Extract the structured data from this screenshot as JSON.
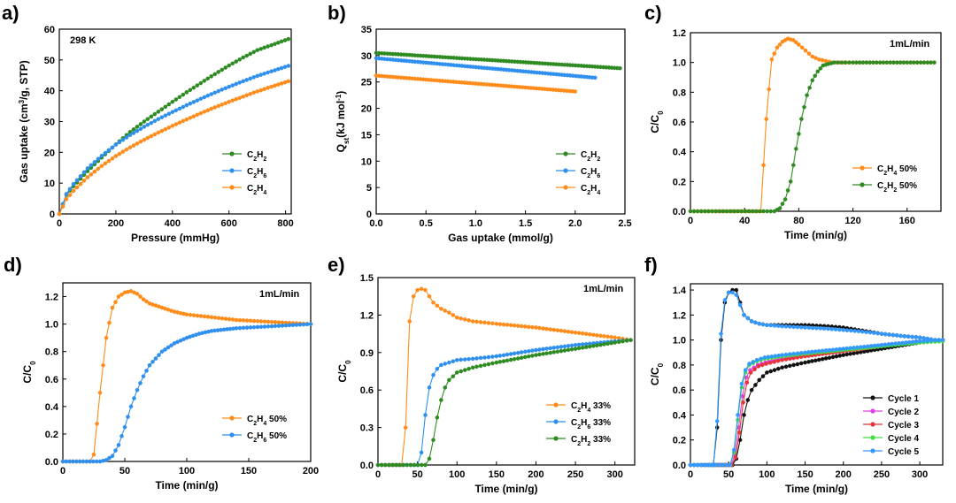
{
  "figure": {
    "colors": {
      "green": "#2e8b22",
      "blue": "#2f8fee",
      "orange": "#ff8c1a",
      "black": "#111111",
      "magenta": "#e43ee8",
      "red": "#e8323a",
      "lime": "#40e040",
      "sky": "#3399ff"
    }
  },
  "chart_data": [
    {
      "panel": "a)",
      "type": "line",
      "annotation": "298 K",
      "xlabel": "Pressure (mmHg)",
      "ylabel": {
        "pre": "Gas uptake (cm",
        "sup": "3",
        "post": "/g, STP)"
      },
      "xlim": [
        0,
        820
      ],
      "ylim": [
        0,
        60
      ],
      "xticks": [
        0,
        200,
        400,
        600,
        800
      ],
      "yticks": [
        0,
        10,
        20,
        30,
        40,
        50,
        60
      ],
      "legend": "bottom-right",
      "series": [
        {
          "name": "C2H2",
          "label": {
            "main": "C",
            "sub1": "2",
            "mid": "H",
            "sub2": "2"
          },
          "color": "green",
          "x": [
            0,
            25,
            50,
            100,
            150,
            200,
            250,
            300,
            350,
            400,
            450,
            500,
            550,
            600,
            650,
            700,
            750,
            810
          ],
          "y": [
            0,
            6.2,
            9.0,
            13.9,
            18.3,
            22.6,
            26.6,
            30.0,
            33.2,
            36.4,
            39.5,
            42.5,
            45.4,
            48.2,
            50.8,
            53.2,
            54.8,
            56.8
          ]
        },
        {
          "name": "C2H6",
          "label": {
            "main": "C",
            "sub1": "2",
            "mid": "H",
            "sub2": "6"
          },
          "color": "blue",
          "x": [
            0,
            25,
            50,
            100,
            150,
            200,
            250,
            300,
            350,
            400,
            450,
            500,
            550,
            600,
            650,
            700,
            750,
            810
          ],
          "y": [
            0,
            6.5,
            9.7,
            14.8,
            18.9,
            22.5,
            25.6,
            28.3,
            30.8,
            33.1,
            35.3,
            37.4,
            39.4,
            41.3,
            43.1,
            44.8,
            46.3,
            48.1
          ]
        },
        {
          "name": "C2H4",
          "label": {
            "main": "C",
            "sub1": "2",
            "mid": "H",
            "sub2": "4"
          },
          "color": "orange",
          "x": [
            0,
            25,
            50,
            100,
            150,
            200,
            250,
            300,
            350,
            400,
            450,
            500,
            550,
            600,
            650,
            700,
            750,
            810
          ],
          "y": [
            0,
            4.8,
            7.5,
            11.9,
            15.6,
            18.8,
            21.6,
            24.1,
            26.4,
            28.6,
            30.7,
            32.7,
            34.6,
            36.4,
            38.1,
            39.8,
            41.3,
            43.1
          ]
        }
      ]
    },
    {
      "panel": "b)",
      "type": "line",
      "xlabel": "Gas uptake (mmol/g)",
      "ylabel": {
        "pre": "Q",
        "sub": "st",
        "mid": "(kJ mol",
        "sup": "-1",
        "post": ")"
      },
      "xlim": [
        0,
        2.5
      ],
      "ylim": [
        0,
        35
      ],
      "xticks": [
        0.0,
        0.5,
        1.0,
        1.5,
        2.0,
        2.5
      ],
      "yticks": [
        0,
        5,
        10,
        15,
        20,
        25,
        30,
        35
      ],
      "legend": "bottom-right",
      "series": [
        {
          "name": "C2H2",
          "label": {
            "main": "C",
            "sub1": "2",
            "mid": "H",
            "sub2": "2"
          },
          "color": "green",
          "x": [
            0.0,
            2.45
          ],
          "y": [
            30.5,
            27.6
          ]
        },
        {
          "name": "C2H6",
          "label": {
            "main": "C",
            "sub1": "2",
            "mid": "H",
            "sub2": "6"
          },
          "color": "blue",
          "x": [
            0.0,
            2.2
          ],
          "y": [
            29.5,
            25.8
          ]
        },
        {
          "name": "C2H4",
          "label": {
            "main": "C",
            "sub1": "2",
            "mid": "H",
            "sub2": "4"
          },
          "color": "orange",
          "x": [
            0.0,
            2.0
          ],
          "y": [
            26.2,
            23.2
          ]
        }
      ]
    },
    {
      "panel": "c)",
      "type": "line",
      "annotation": "1mL/min",
      "xlabel": "Time (min/g)",
      "ylabel": {
        "pre": "C/C",
        "sub": "0",
        "mid": "",
        "sup": "",
        "post": ""
      },
      "xlim": [
        0,
        185
      ],
      "ylim": [
        0,
        1.2
      ],
      "xticks": [
        0,
        40,
        80,
        120,
        160
      ],
      "yticks": [
        0.0,
        0.2,
        0.4,
        0.6,
        0.8,
        1.0,
        1.2
      ],
      "yfmt": 1,
      "legend": "bottom-right",
      "series": [
        {
          "name": "C2H4 50%",
          "label": {
            "main": "C",
            "sub1": "2",
            "mid": "H",
            "sub2": "4",
            "tail": " 50%"
          },
          "color": "orange",
          "x": [
            0,
            52,
            56,
            60,
            64,
            68,
            72,
            76,
            80,
            85,
            90,
            95,
            100,
            105,
            120,
            140,
            160,
            180
          ],
          "y": [
            0,
            0,
            0.62,
            1.02,
            1.1,
            1.14,
            1.16,
            1.15,
            1.12,
            1.08,
            1.04,
            1.02,
            1.01,
            1.0,
            1.0,
            1.0,
            1.0,
            1.0
          ]
        },
        {
          "name": "C2H2 50%",
          "label": {
            "main": "C",
            "sub1": "2",
            "mid": "H",
            "sub2": "2",
            "tail": " 50%"
          },
          "color": "green",
          "x": [
            0,
            62,
            66,
            70,
            74,
            78,
            82,
            86,
            90,
            94,
            98,
            102,
            106,
            120,
            140,
            160,
            180
          ],
          "y": [
            0,
            0,
            0.02,
            0.08,
            0.2,
            0.42,
            0.62,
            0.78,
            0.88,
            0.94,
            0.98,
            0.99,
            1.0,
            1.0,
            1.0,
            1.0,
            1.0
          ]
        }
      ]
    },
    {
      "panel": "d)",
      "type": "line",
      "annotation": "1mL/min",
      "xlabel": "Time (min/g)",
      "ylabel": {
        "pre": "C/C",
        "sub": "0",
        "mid": "",
        "sup": "",
        "post": ""
      },
      "xlim": [
        0,
        200
      ],
      "ylim": [
        0,
        1.3
      ],
      "xticks": [
        0,
        50,
        100,
        150,
        200
      ],
      "yticks": [
        0.0,
        0.2,
        0.4,
        0.6,
        0.8,
        1.0,
        1.2
      ],
      "yfmt": 1,
      "legend": "bottom-right",
      "series": [
        {
          "name": "C2H4 50%",
          "label": {
            "main": "C",
            "sub1": "2",
            "mid": "H",
            "sub2": "4",
            "tail": " 50%"
          },
          "color": "orange",
          "x": [
            0,
            22,
            25,
            30,
            35,
            40,
            45,
            50,
            55,
            60,
            65,
            70,
            80,
            90,
            100,
            120,
            140,
            160,
            180,
            200
          ],
          "y": [
            0,
            0,
            0.05,
            0.5,
            0.9,
            1.12,
            1.2,
            1.23,
            1.24,
            1.22,
            1.18,
            1.15,
            1.12,
            1.09,
            1.07,
            1.05,
            1.03,
            1.02,
            1.01,
            1.0
          ]
        },
        {
          "name": "C2H6 50%",
          "label": {
            "main": "C",
            "sub1": "2",
            "mid": "H",
            "sub2": "6",
            "tail": " 50%"
          },
          "color": "blue",
          "x": [
            0,
            30,
            35,
            40,
            45,
            50,
            55,
            60,
            65,
            70,
            80,
            90,
            100,
            110,
            120,
            130,
            140,
            160,
            180,
            200
          ],
          "y": [
            0,
            0,
            0.01,
            0.04,
            0.12,
            0.25,
            0.4,
            0.52,
            0.62,
            0.7,
            0.8,
            0.86,
            0.9,
            0.93,
            0.95,
            0.96,
            0.97,
            0.98,
            0.99,
            1.0
          ]
        }
      ]
    },
    {
      "panel": "e)",
      "type": "line",
      "annotation": "1mL/min",
      "xlabel": "Time (min/g)",
      "ylabel": {
        "pre": "C/C",
        "sub": "0",
        "mid": "",
        "sup": "",
        "post": ""
      },
      "xlim": [
        0,
        325
      ],
      "ylim": [
        0,
        1.5
      ],
      "xticks": [
        0,
        50,
        100,
        150,
        200,
        250,
        300
      ],
      "yticks": [
        0.0,
        0.3,
        0.6,
        0.9,
        1.2,
        1.5
      ],
      "yfmt": 1,
      "legend": "bottom-right",
      "series": [
        {
          "name": "C2H4 33%",
          "label": {
            "main": "C",
            "sub1": "2",
            "mid": "H",
            "sub2": "4",
            "tail": " 33%"
          },
          "color": "orange",
          "x": [
            0,
            30,
            35,
            40,
            45,
            50,
            55,
            60,
            65,
            70,
            80,
            90,
            100,
            120,
            150,
            200,
            250,
            300,
            320
          ],
          "y": [
            0,
            0,
            0.3,
            1.15,
            1.35,
            1.4,
            1.41,
            1.4,
            1.35,
            1.3,
            1.25,
            1.22,
            1.18,
            1.15,
            1.13,
            1.1,
            1.06,
            1.02,
            1.0
          ]
        },
        {
          "name": "C2H6 33%",
          "label": {
            "main": "C",
            "sub1": "2",
            "mid": "H",
            "sub2": "6",
            "tail": " 33%"
          },
          "color": "blue",
          "x": [
            0,
            50,
            55,
            60,
            65,
            70,
            75,
            80,
            90,
            100,
            120,
            150,
            200,
            250,
            300,
            320
          ],
          "y": [
            0,
            0,
            0.1,
            0.4,
            0.62,
            0.72,
            0.77,
            0.8,
            0.82,
            0.84,
            0.85,
            0.87,
            0.92,
            0.96,
            0.99,
            1.0
          ]
        },
        {
          "name": "C2H2 33%",
          "label": {
            "main": "C",
            "sub1": "2",
            "mid": "H",
            "sub2": "2",
            "tail": " 33%"
          },
          "color": "green",
          "x": [
            0,
            60,
            65,
            70,
            75,
            80,
            85,
            90,
            100,
            120,
            150,
            200,
            250,
            300,
            320
          ],
          "y": [
            0,
            0,
            0.05,
            0.2,
            0.38,
            0.52,
            0.62,
            0.68,
            0.74,
            0.78,
            0.82,
            0.88,
            0.93,
            0.98,
            1.0
          ]
        }
      ]
    },
    {
      "panel": "f)",
      "type": "line",
      "xlabel": "Time (min/g)",
      "ylabel": {
        "pre": "C/C",
        "sub": "0",
        "mid": "",
        "sup": "",
        "post": ""
      },
      "xlim": [
        0,
        330
      ],
      "ylim": [
        0,
        1.45
      ],
      "xticks": [
        0,
        50,
        100,
        150,
        200,
        250,
        300
      ],
      "yticks": [
        0.0,
        0.2,
        0.4,
        0.6,
        0.8,
        1.0,
        1.2,
        1.4
      ],
      "yfmt": 1,
      "legend": "bottom-right",
      "series": [
        {
          "name": "Cycle 1",
          "label": {
            "main": "Cycle 1"
          },
          "color": "black",
          "x": [
            0,
            30,
            35,
            40,
            45,
            50,
            55,
            60,
            65,
            70,
            80,
            90,
            100,
            120,
            150,
            180,
            200,
            220,
            250,
            280,
            300,
            320,
            330
          ],
          "y": [
            0,
            0,
            0.3,
            1.0,
            1.3,
            1.38,
            1.4,
            1.4,
            1.3,
            1.2,
            1.15,
            1.13,
            1.12,
            1.12,
            1.12,
            1.11,
            1.1,
            1.08,
            1.05,
            1.03,
            1.02,
            1.0,
            1.0
          ]
        },
        {
          "name": "Cycle 1 C2H2",
          "legend": false,
          "color": "black",
          "x": [
            0,
            55,
            60,
            65,
            70,
            75,
            80,
            90,
            100,
            120,
            150,
            200,
            250,
            300,
            330
          ],
          "y": [
            0,
            0,
            0.05,
            0.2,
            0.4,
            0.52,
            0.6,
            0.68,
            0.74,
            0.78,
            0.82,
            0.88,
            0.93,
            0.98,
            1.0
          ]
        },
        {
          "name": "Cycle 2",
          "label": {
            "main": "Cycle 2"
          },
          "color": "magenta",
          "x": [
            0,
            53,
            58,
            63,
            68,
            73,
            78,
            88,
            98,
            120,
            150,
            200,
            250,
            300,
            330
          ],
          "y": [
            0,
            0,
            0.08,
            0.3,
            0.55,
            0.7,
            0.76,
            0.8,
            0.82,
            0.85,
            0.88,
            0.92,
            0.96,
            0.99,
            1.0
          ]
        },
        {
          "name": "Cycle 3",
          "label": {
            "main": "Cycle 3"
          },
          "color": "red",
          "x": [
            0,
            54,
            59,
            64,
            69,
            74,
            79,
            89,
            99,
            120,
            150,
            200,
            250,
            300,
            330
          ],
          "y": [
            0,
            0,
            0.06,
            0.26,
            0.5,
            0.66,
            0.74,
            0.79,
            0.81,
            0.84,
            0.87,
            0.91,
            0.95,
            0.99,
            1.0
          ]
        },
        {
          "name": "Cycle 4",
          "label": {
            "main": "Cycle 4"
          },
          "color": "lime",
          "x": [
            0,
            52,
            57,
            62,
            67,
            72,
            77,
            87,
            97,
            120,
            150,
            200,
            250,
            300,
            330
          ],
          "y": [
            0,
            0,
            0.1,
            0.36,
            0.62,
            0.74,
            0.8,
            0.83,
            0.85,
            0.87,
            0.89,
            0.92,
            0.95,
            0.98,
            0.99
          ]
        },
        {
          "name": "Cycle 5",
          "label": {
            "main": "Cycle 5"
          },
          "color": "sky",
          "x": [
            0,
            30,
            35,
            40,
            45,
            50,
            55,
            60,
            65,
            70,
            80,
            90,
            100,
            120,
            150,
            180,
            200,
            220,
            250,
            280,
            300,
            320,
            330
          ],
          "y": [
            0,
            0,
            0.35,
            1.05,
            1.32,
            1.38,
            1.38,
            1.36,
            1.28,
            1.2,
            1.15,
            1.13,
            1.12,
            1.11,
            1.1,
            1.09,
            1.08,
            1.07,
            1.05,
            1.03,
            1.02,
            1.0,
            1.0
          ]
        },
        {
          "name": "Cycle 5 C2H2",
          "legend": false,
          "color": "sky",
          "x": [
            0,
            52,
            57,
            62,
            67,
            72,
            77,
            87,
            97,
            120,
            150,
            200,
            250,
            300,
            330
          ],
          "y": [
            0,
            0,
            0.12,
            0.4,
            0.65,
            0.76,
            0.81,
            0.84,
            0.86,
            0.88,
            0.9,
            0.93,
            0.96,
            0.99,
            1.0
          ]
        }
      ]
    }
  ]
}
